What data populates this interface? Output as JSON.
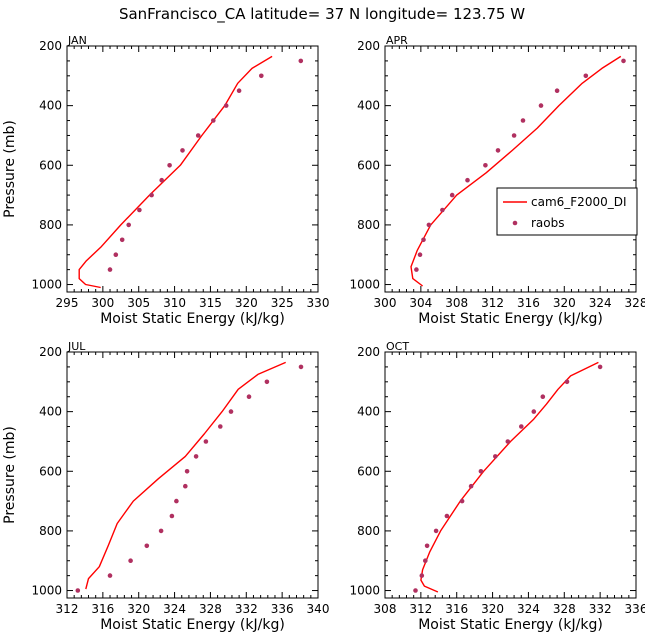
{
  "figure_title": "SanFrancisco_CA  latitude= 37 N longitude= 123.75 W",
  "colors": {
    "model": "#ff0000",
    "obs": "#b03060",
    "axis": "#000000"
  },
  "legend": {
    "model_label": "cam6_F2000_DI",
    "obs_label": "raobs"
  },
  "chart_data": [
    {
      "type": "line",
      "panel": "JAN",
      "xlabel": "Moist Static Energy (kJ/kg)",
      "ylabel": "Pressure (mb)",
      "xlim": [
        295,
        330
      ],
      "ylim": [
        1025,
        200
      ],
      "xticks": [
        295,
        300,
        305,
        310,
        315,
        320,
        325,
        330
      ],
      "yticks": [
        200,
        400,
        600,
        800,
        1000
      ],
      "series": [
        {
          "name": "cam6_F2000_DI",
          "kind": "line",
          "x": [
            323.6,
            320.8,
            318.8,
            317.0,
            313.8,
            310.8,
            306.5,
            302.5,
            299.7,
            297.7,
            296.7,
            296.7,
            297.6,
            299.7
          ],
          "y": [
            235,
            275,
            325,
            400,
            500,
            600,
            700,
            800,
            875,
            920,
            950,
            980,
            1000,
            1010
          ]
        },
        {
          "name": "raobs",
          "kind": "scatter",
          "x": [
            327.6,
            322.1,
            319.0,
            317.2,
            315.4,
            313.3,
            311.1,
            309.3,
            308.2,
            306.8,
            305.1,
            303.6,
            302.7,
            301.8,
            301.0
          ],
          "y": [
            250,
            300,
            350,
            400,
            450,
            500,
            550,
            600,
            650,
            700,
            750,
            800,
            850,
            900,
            950
          ]
        }
      ]
    },
    {
      "type": "line",
      "panel": "APR",
      "xlabel": "Moist Static Energy (kJ/kg)",
      "ylabel": "",
      "xlim": [
        300,
        328
      ],
      "ylim": [
        1025,
        200
      ],
      "xticks": [
        300,
        304,
        308,
        312,
        316,
        320,
        324,
        328
      ],
      "yticks": [
        200,
        400,
        600,
        800,
        1000
      ],
      "series": [
        {
          "name": "cam6_F2000_DI",
          "kind": "line",
          "x": [
            326.3,
            324.2,
            322.0,
            319.4,
            317.0,
            314.2,
            311.3,
            308.0,
            305.1,
            303.6,
            302.9,
            303.1,
            304.2
          ],
          "y": [
            235,
            275,
            325,
            400,
            475,
            550,
            625,
            700,
            800,
            885,
            940,
            980,
            1005
          ]
        },
        {
          "name": "raobs",
          "kind": "scatter",
          "x": [
            326.6,
            322.4,
            319.2,
            317.4,
            315.4,
            314.4,
            312.6,
            311.2,
            309.2,
            307.5,
            306.4,
            304.9,
            304.3,
            303.9,
            303.5
          ],
          "y": [
            250,
            300,
            350,
            400,
            450,
            500,
            550,
            600,
            650,
            700,
            750,
            800,
            850,
            900,
            950
          ]
        }
      ]
    },
    {
      "type": "line",
      "panel": "JUL",
      "xlabel": "Moist Static Energy (kJ/kg)",
      "ylabel": "Pressure (mb)",
      "xlim": [
        312,
        340
      ],
      "ylim": [
        1025,
        200
      ],
      "xticks": [
        312,
        316,
        320,
        324,
        328,
        332,
        336,
        340
      ],
      "yticks": [
        200,
        400,
        600,
        800,
        1000
      ],
      "series": [
        {
          "name": "cam6_F2000_DI",
          "kind": "line",
          "x": [
            336.4,
            333.3,
            331.1,
            329.3,
            327.3,
            325.2,
            322.2,
            319.4,
            317.6,
            316.6,
            315.6,
            314.4,
            314.1
          ],
          "y": [
            235,
            275,
            325,
            400,
            475,
            550,
            625,
            700,
            775,
            850,
            920,
            960,
            995
          ]
        },
        {
          "name": "raobs",
          "kind": "scatter",
          "x": [
            338.1,
            334.3,
            332.3,
            330.3,
            329.1,
            327.5,
            326.4,
            325.4,
            325.2,
            324.2,
            323.7,
            322.5,
            320.9,
            319.1,
            316.8,
            313.2
          ],
          "y": [
            250,
            300,
            350,
            400,
            450,
            500,
            550,
            600,
            650,
            700,
            750,
            800,
            850,
            900,
            950,
            1000
          ]
        }
      ]
    },
    {
      "type": "line",
      "panel": "OCT",
      "xlabel": "Moist Static Energy (kJ/kg)",
      "ylabel": "",
      "xlim": [
        308,
        336
      ],
      "ylim": [
        1025,
        200
      ],
      "xticks": [
        308,
        312,
        316,
        320,
        324,
        328,
        332,
        336
      ],
      "yticks": [
        200,
        400,
        600,
        800,
        1000
      ],
      "series": [
        {
          "name": "cam6_F2000_DI",
          "kind": "line",
          "x": [
            331.8,
            328.7,
            327.3,
            326.0,
            324.6,
            322.0,
            319.0,
            316.4,
            314.2,
            313.0,
            312.2,
            312.0,
            312.4,
            313.9
          ],
          "y": [
            235,
            280,
            325,
            375,
            425,
            500,
            600,
            700,
            800,
            870,
            930,
            965,
            985,
            1005
          ]
        },
        {
          "name": "raobs",
          "kind": "scatter",
          "x": [
            332.0,
            328.3,
            325.6,
            324.6,
            323.2,
            321.7,
            320.3,
            318.7,
            317.6,
            316.6,
            314.9,
            313.7,
            312.7,
            312.5,
            312.1,
            311.4
          ],
          "y": [
            250,
            300,
            350,
            400,
            450,
            500,
            550,
            600,
            650,
            700,
            750,
            800,
            850,
            900,
            950,
            1000
          ]
        }
      ]
    }
  ]
}
